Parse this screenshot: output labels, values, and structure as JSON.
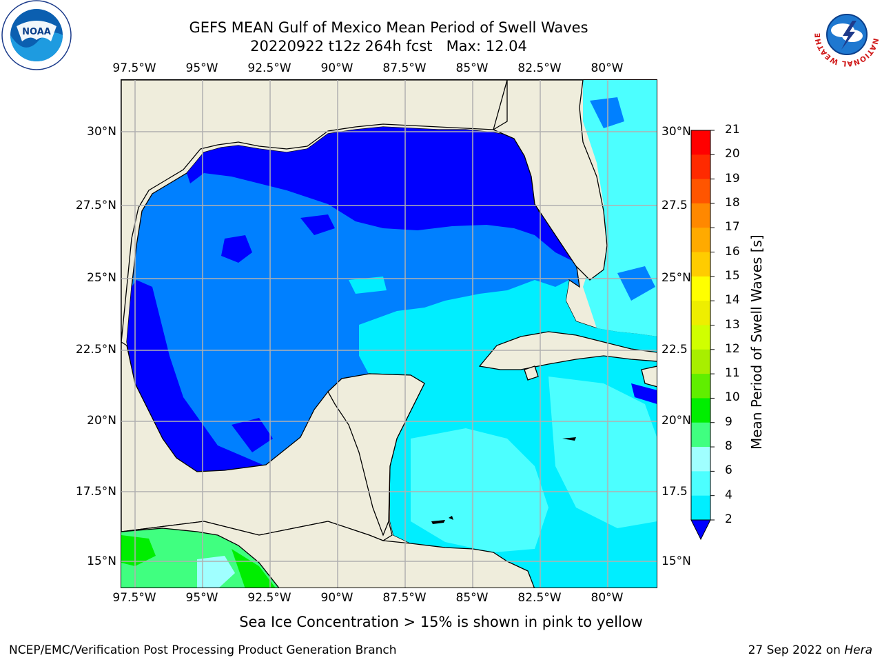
{
  "title": {
    "line1": "GEFS MEAN Gulf of Mexico Mean Period of Swell Waves",
    "line2_run": "20220922 t12z 264h fcst",
    "line2_max": "Max: 12.04"
  },
  "logos": {
    "left": {
      "name": "noaa-logo",
      "text": "NOAA"
    },
    "right": {
      "name": "nws-logo",
      "ring_text": "NATIONAL WEATHER SERVICE"
    }
  },
  "map": {
    "lon_labels": [
      "97.5°W",
      "95°W",
      "92.5°W",
      "90°W",
      "87.5°W",
      "85°W",
      "82.5°W",
      "80°W"
    ],
    "lat_labels_left": [
      "30°N",
      "27.5°N",
      "25°N",
      "22.5°N",
      "20°N",
      "17.5°N",
      "15°N"
    ],
    "lat_labels_right": [
      "30°N",
      "27.5",
      "25°N",
      "22.5",
      "20°N",
      "17.5",
      "15°N"
    ],
    "colors": {
      "land": "#efeddc",
      "grid": "#b0b0b0",
      "coast": "#000000",
      "nodata": "#ffffff"
    }
  },
  "colorbar": {
    "title": "Mean Period of Swell Waves [s]",
    "ticks": [
      "2",
      "4",
      "6",
      "8",
      "9",
      "10",
      "11",
      "12",
      "13",
      "14",
      "15",
      "16",
      "17",
      "18",
      "19",
      "20",
      "21"
    ],
    "colors": [
      "#0000ff",
      "#0080ff",
      "#00eeff",
      "#4cffff",
      "#a0ffff",
      "#40ff80",
      "#00ee00",
      "#60ee00",
      "#a8ee00",
      "#d0ff00",
      "#eeee00",
      "#ffff00",
      "#ffcc00",
      "#ffaa00",
      "#ff8800",
      "#ff5500",
      "#ff2a00",
      "#ff0000"
    ],
    "under_color": "#0000ff"
  },
  "footer": {
    "note": "Sea Ice Concentration > 15% is shown in pink to yellow",
    "credit": "NCEP/EMC/Verification Post Processing Product Generation Branch",
    "date": "27 Sep 2022 on",
    "host": "Hera"
  }
}
